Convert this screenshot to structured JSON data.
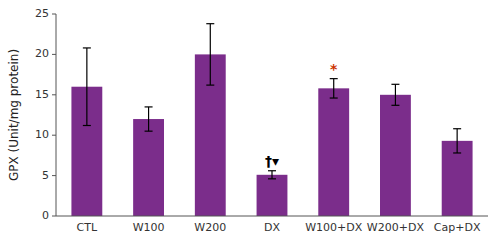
{
  "chart_data": {
    "type": "bar",
    "categories": [
      "CTL",
      "W100",
      "W200",
      "DX",
      "W100+DX",
      "W200+DX",
      "Cap+DX"
    ],
    "values": [
      16.0,
      12.0,
      20.0,
      5.1,
      15.8,
      15.0,
      9.3
    ],
    "errors": [
      4.8,
      1.5,
      3.8,
      0.5,
      1.2,
      1.3,
      1.5
    ],
    "color": "#7B2D8B",
    "ylabel": "GPX (Unit/mg protein)",
    "ylim": [
      0,
      25
    ],
    "yticks": [
      0,
      5,
      10,
      15,
      20,
      25
    ],
    "annotations": [
      {
        "text": "†▾",
        "category": "DX",
        "color": "black"
      },
      {
        "text": "*",
        "category": "W100+DX",
        "color": "#cc3300"
      }
    ]
  }
}
